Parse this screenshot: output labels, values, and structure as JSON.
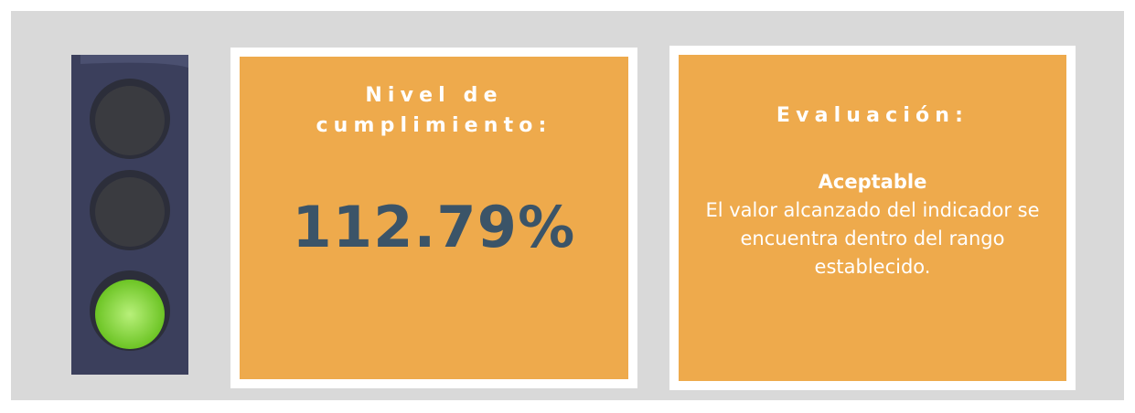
{
  "indicator": {
    "title": "Nivel de cumplimiento:",
    "value": "112.79%"
  },
  "evaluation": {
    "title": "Evaluación:",
    "rating": "Aceptable",
    "description": "El valor alcanzado del indicador se encuentra dentro del rango establecido."
  }
}
